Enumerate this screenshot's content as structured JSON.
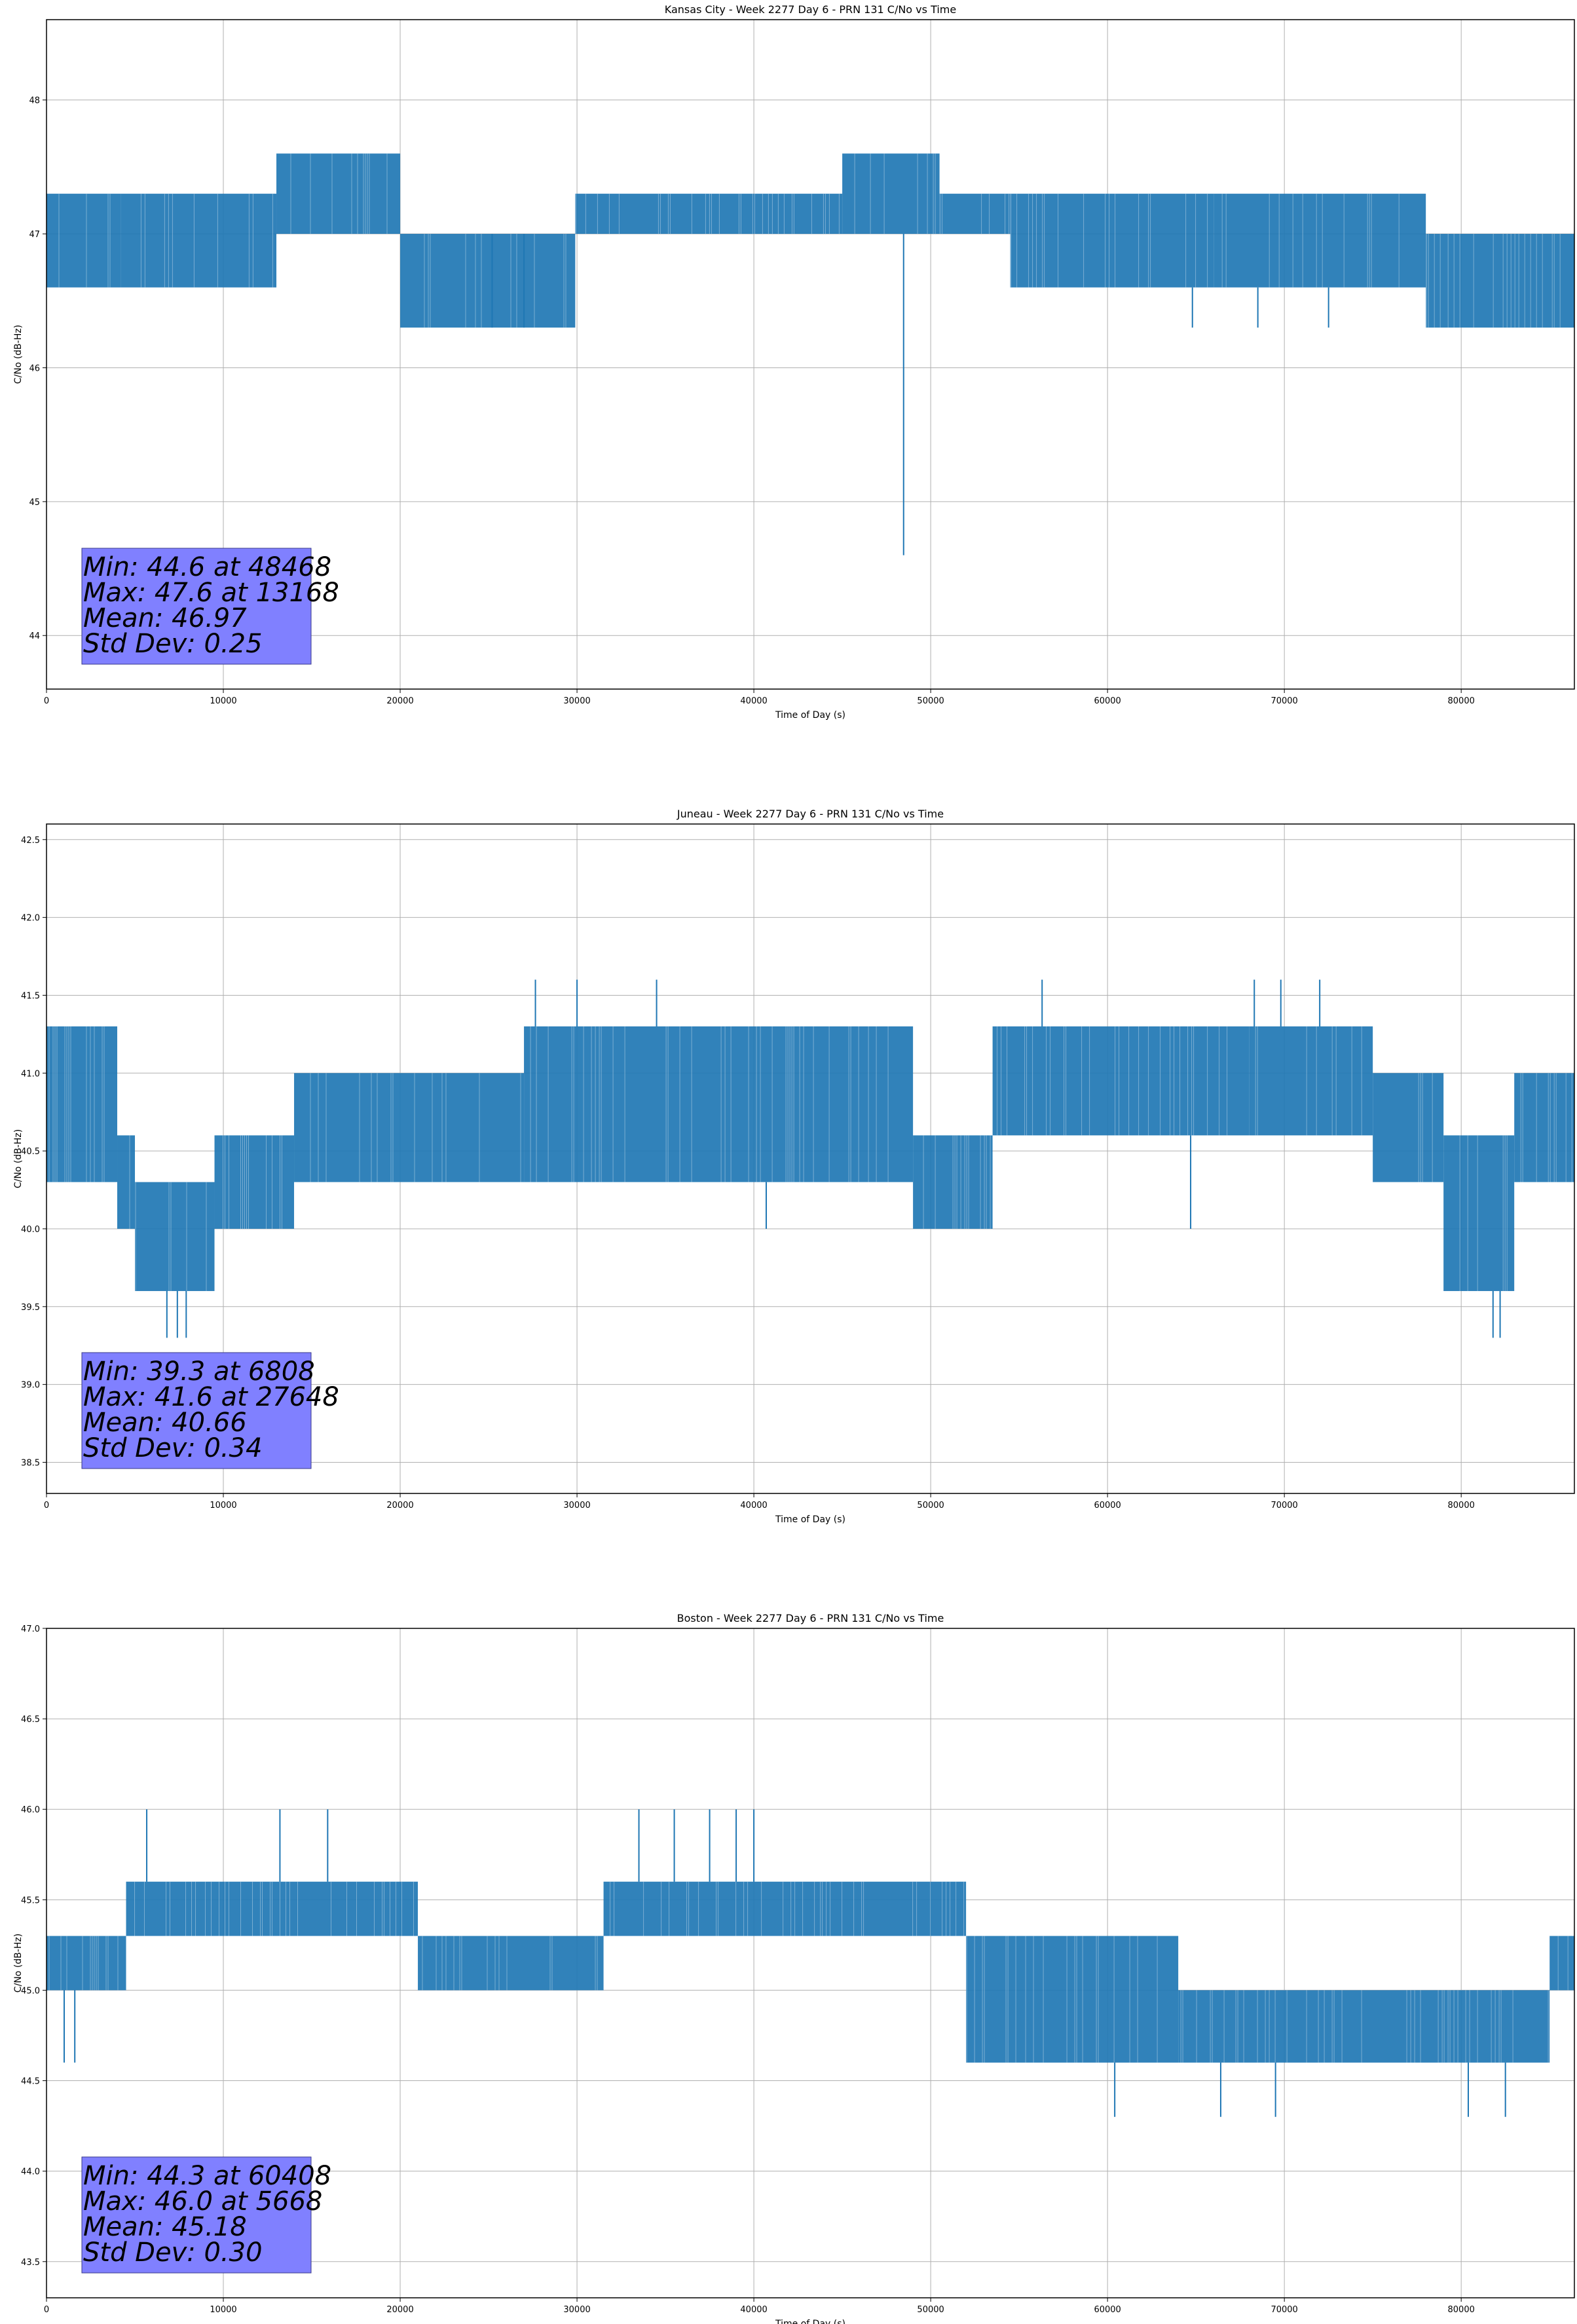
{
  "figure": {
    "charts": [
      {
        "title": "Kansas City - Week 2277 Day 6 - PRN 131 C/No vs Time",
        "xlabel": "Time of Day (s)",
        "ylabel": "C/No (dB-Hz)",
        "stats": [
          "Min: 44.6 at 48468",
          "Max: 47.6 at 13168",
          "Mean: 46.97",
          "Std Dev: 0.25"
        ]
      },
      {
        "title": "Juneau - Week 2277 Day 6 - PRN 131 C/No vs Time",
        "xlabel": "Time of Day (s)",
        "ylabel": "C/No (dB-Hz)",
        "stats": [
          "Min: 39.3 at 6808",
          "Max: 41.6 at 27648",
          "Mean: 40.66",
          "Std Dev: 0.34"
        ]
      },
      {
        "title": "Boston - Week 2277 Day 6 - PRN 131 C/No vs Time",
        "xlabel": "Time of Day (s)",
        "ylabel": "C/No (dB-Hz)",
        "stats": [
          "Min: 44.3 at 60408",
          "Max: 46.0 at 5668",
          "Mean: 45.18",
          "Std Dev: 0.30"
        ]
      }
    ]
  },
  "chart_data": [
    {
      "type": "line",
      "title": "Kansas City - Week 2277 Day 6 - PRN 131 C/No vs Time",
      "xlabel": "Time of Day (s)",
      "ylabel": "C/No (dB-Hz)",
      "xlim": [
        0,
        86400
      ],
      "ylim": [
        43.6,
        48.6
      ],
      "xticks": [
        0,
        10000,
        20000,
        30000,
        40000,
        50000,
        60000,
        70000,
        80000
      ],
      "yticks": [
        44,
        45,
        46,
        47,
        48
      ],
      "ytick_labels": [
        "44",
        "45",
        "46",
        "47",
        "48"
      ],
      "grid": true,
      "color": "#1f77b4",
      "box_color": "#8080ff",
      "series": [
        {
          "segments": [
            {
              "x": [
                0,
                4200
              ],
              "min": 46.6,
              "max": 47.3
            },
            {
              "x": [
                4200,
                13000
              ],
              "min": 46.6,
              "max": 47.3
            },
            {
              "x": [
                13000,
                20000
              ],
              "min": 47.0,
              "max": 47.6
            },
            {
              "x": [
                20000,
                29900
              ],
              "min": 46.3,
              "max": 47.0
            },
            {
              "x": [
                29900,
                45000
              ],
              "min": 47.0,
              "max": 47.3
            },
            {
              "x": [
                45000,
                50500
              ],
              "min": 47.0,
              "max": 47.6
            },
            {
              "x": [
                50500,
                54500
              ],
              "min": 47.0,
              "max": 47.3
            },
            {
              "x": [
                54500,
                66000
              ],
              "min": 46.6,
              "max": 47.3
            },
            {
              "x": [
                66000,
                78000
              ],
              "min": 46.6,
              "max": 47.3
            },
            {
              "x": [
                78000,
                86400
              ],
              "min": 46.3,
              "max": 47.0
            }
          ],
          "spikes": [
            {
              "x": 48468,
              "y": 44.6
            },
            {
              "x": 13168,
              "y": 47.6
            },
            {
              "x": 14800,
              "y": 47.6
            },
            {
              "x": 16200,
              "y": 47.6
            },
            {
              "x": 25200,
              "y": 46.3
            },
            {
              "x": 27000,
              "y": 46.3
            },
            {
              "x": 57000,
              "y": 47.3
            },
            {
              "x": 62500,
              "y": 47.3
            },
            {
              "x": 64800,
              "y": 46.3
            },
            {
              "x": 68500,
              "y": 46.3
            },
            {
              "x": 72500,
              "y": 46.3
            }
          ]
        }
      ]
    },
    {
      "type": "line",
      "title": "Juneau - Week 2277 Day 6 - PRN 131 C/No vs Time",
      "xlabel": "Time of Day (s)",
      "ylabel": "C/No (dB-Hz)",
      "xlim": [
        0,
        86400
      ],
      "ylim": [
        38.3,
        42.6
      ],
      "xticks": [
        0,
        10000,
        20000,
        30000,
        40000,
        50000,
        60000,
        70000,
        80000
      ],
      "yticks": [
        38.5,
        39.0,
        39.5,
        40.0,
        40.5,
        41.0,
        41.5,
        42.0,
        42.5
      ],
      "ytick_labels": [
        "38.5",
        "39.0",
        "39.5",
        "40.0",
        "40.5",
        "41.0",
        "41.5",
        "42.0",
        "42.5"
      ],
      "grid": true,
      "color": "#1f77b4",
      "box_color": "#8080ff",
      "series": [
        {
          "segments": [
            {
              "x": [
                0,
                4000
              ],
              "min": 40.3,
              "max": 41.3
            },
            {
              "x": [
                4000,
                5000
              ],
              "min": 40.0,
              "max": 40.6
            },
            {
              "x": [
                5000,
                9500
              ],
              "min": 39.6,
              "max": 40.3
            },
            {
              "x": [
                9500,
                14000
              ],
              "min": 40.0,
              "max": 40.6
            },
            {
              "x": [
                14000,
                27000
              ],
              "min": 40.3,
              "max": 41.0
            },
            {
              "x": [
                27000,
                49000
              ],
              "min": 40.3,
              "max": 41.3
            },
            {
              "x": [
                49000,
                53500
              ],
              "min": 40.0,
              "max": 40.6
            },
            {
              "x": [
                53500,
                68000
              ],
              "min": 40.6,
              "max": 41.3
            },
            {
              "x": [
                68000,
                75000
              ],
              "min": 40.6,
              "max": 41.3
            },
            {
              "x": [
                75000,
                79000
              ],
              "min": 40.3,
              "max": 41.0
            },
            {
              "x": [
                79000,
                83000
              ],
              "min": 39.6,
              "max": 40.6
            },
            {
              "x": [
                83000,
                86400
              ],
              "min": 40.3,
              "max": 41.0
            }
          ],
          "spikes": [
            {
              "x": 6808,
              "y": 39.3
            },
            {
              "x": 7400,
              "y": 39.3
            },
            {
              "x": 7900,
              "y": 39.3
            },
            {
              "x": 27648,
              "y": 41.6
            },
            {
              "x": 30000,
              "y": 41.6
            },
            {
              "x": 34500,
              "y": 41.6
            },
            {
              "x": 56300,
              "y": 41.6
            },
            {
              "x": 68300,
              "y": 41.6
            },
            {
              "x": 69800,
              "y": 41.6
            },
            {
              "x": 72000,
              "y": 41.6
            },
            {
              "x": 82200,
              "y": 39.3
            },
            {
              "x": 81800,
              "y": 39.3
            },
            {
              "x": 40700,
              "y": 40.0
            },
            {
              "x": 64700,
              "y": 40.0
            }
          ]
        }
      ]
    },
    {
      "type": "line",
      "title": "Boston - Week 2277 Day 6 - PRN 131 C/No vs Time",
      "xlabel": "Time of Day (s)",
      "ylabel": "C/No (dB-Hz)",
      "xlim": [
        0,
        86400
      ],
      "ylim": [
        43.3,
        47.0
      ],
      "xticks": [
        0,
        10000,
        20000,
        30000,
        40000,
        50000,
        60000,
        70000,
        80000
      ],
      "yticks": [
        43.5,
        44.0,
        44.5,
        45.0,
        45.5,
        46.0,
        46.5,
        47.0
      ],
      "ytick_labels": [
        "43.5",
        "44.0",
        "44.5",
        "45.0",
        "45.5",
        "46.0",
        "46.5",
        "47.0"
      ],
      "grid": true,
      "color": "#1f77b4",
      "box_color": "#8080ff",
      "series": [
        {
          "segments": [
            {
              "x": [
                0,
                4500
              ],
              "min": 45.0,
              "max": 45.3
            },
            {
              "x": [
                4500,
                21000
              ],
              "min": 45.3,
              "max": 45.6
            },
            {
              "x": [
                21000,
                31500
              ],
              "min": 45.0,
              "max": 45.3
            },
            {
              "x": [
                31500,
                52000
              ],
              "min": 45.3,
              "max": 45.6
            },
            {
              "x": [
                52000,
                64000
              ],
              "min": 44.6,
              "max": 45.3
            },
            {
              "x": [
                64000,
                85000
              ],
              "min": 44.6,
              "max": 45.0
            },
            {
              "x": [
                85000,
                86400
              ],
              "min": 45.0,
              "max": 45.3
            }
          ],
          "spikes": [
            {
              "x": 1000,
              "y": 44.6
            },
            {
              "x": 1600,
              "y": 44.6
            },
            {
              "x": 5668,
              "y": 46.0
            },
            {
              "x": 13200,
              "y": 46.0
            },
            {
              "x": 15900,
              "y": 46.0
            },
            {
              "x": 33500,
              "y": 46.0
            },
            {
              "x": 35500,
              "y": 46.0
            },
            {
              "x": 37500,
              "y": 46.0
            },
            {
              "x": 39000,
              "y": 46.0
            },
            {
              "x": 40000,
              "y": 46.0
            },
            {
              "x": 60408,
              "y": 44.3
            },
            {
              "x": 66400,
              "y": 44.3
            },
            {
              "x": 69500,
              "y": 44.3
            },
            {
              "x": 80400,
              "y": 44.3
            },
            {
              "x": 82500,
              "y": 44.3
            }
          ]
        }
      ]
    }
  ]
}
